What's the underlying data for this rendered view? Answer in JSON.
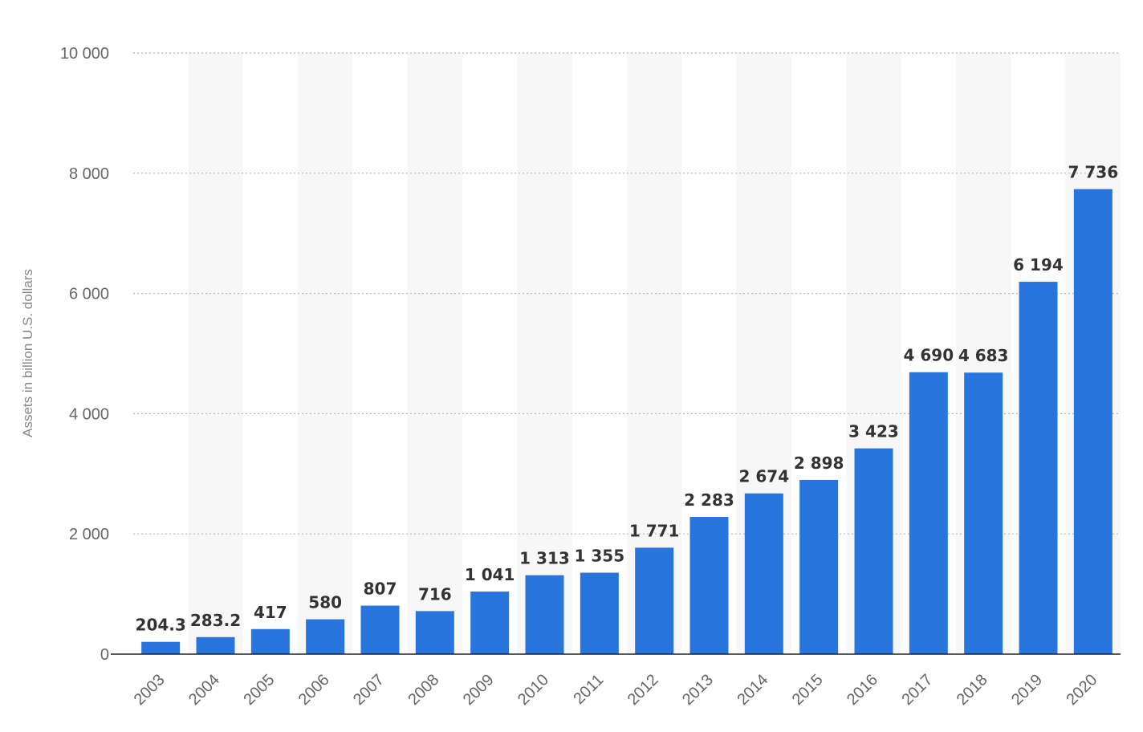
{
  "chart_data": {
    "type": "bar",
    "categories": [
      "2003",
      "2004",
      "2005",
      "2006",
      "2007",
      "2008",
      "2009",
      "2010",
      "2011",
      "2012",
      "2013",
      "2014",
      "2015",
      "2016",
      "2017",
      "2018",
      "2019",
      "2020"
    ],
    "values": [
      204.3,
      283.2,
      417,
      580,
      807,
      716,
      1041,
      1313,
      1355,
      1771,
      2283,
      2674,
      2898,
      3423,
      4690,
      4683,
      6194,
      7736
    ],
    "data_labels": [
      "204.3",
      "283.2",
      "417",
      "580",
      "807",
      "716",
      "1 041",
      "1 313",
      "1 355",
      "1 771",
      "2 283",
      "2 674",
      "2 898",
      "3 423",
      "4 690",
      "4 683",
      "6 194",
      "7 736"
    ],
    "title": "",
    "xlabel": "",
    "ylabel": "Assets in billion U.S. dollars",
    "ylim": [
      0,
      10000
    ],
    "yticks": [
      0,
      2000,
      4000,
      6000,
      8000,
      10000
    ],
    "ytick_labels": [
      "0",
      "2 000",
      "4 000",
      "6 000",
      "8 000",
      "10 000"
    ],
    "grid": true,
    "legend": "none",
    "colors": {
      "bar": "#2876dd",
      "stripe": "#f7f7f7"
    }
  }
}
